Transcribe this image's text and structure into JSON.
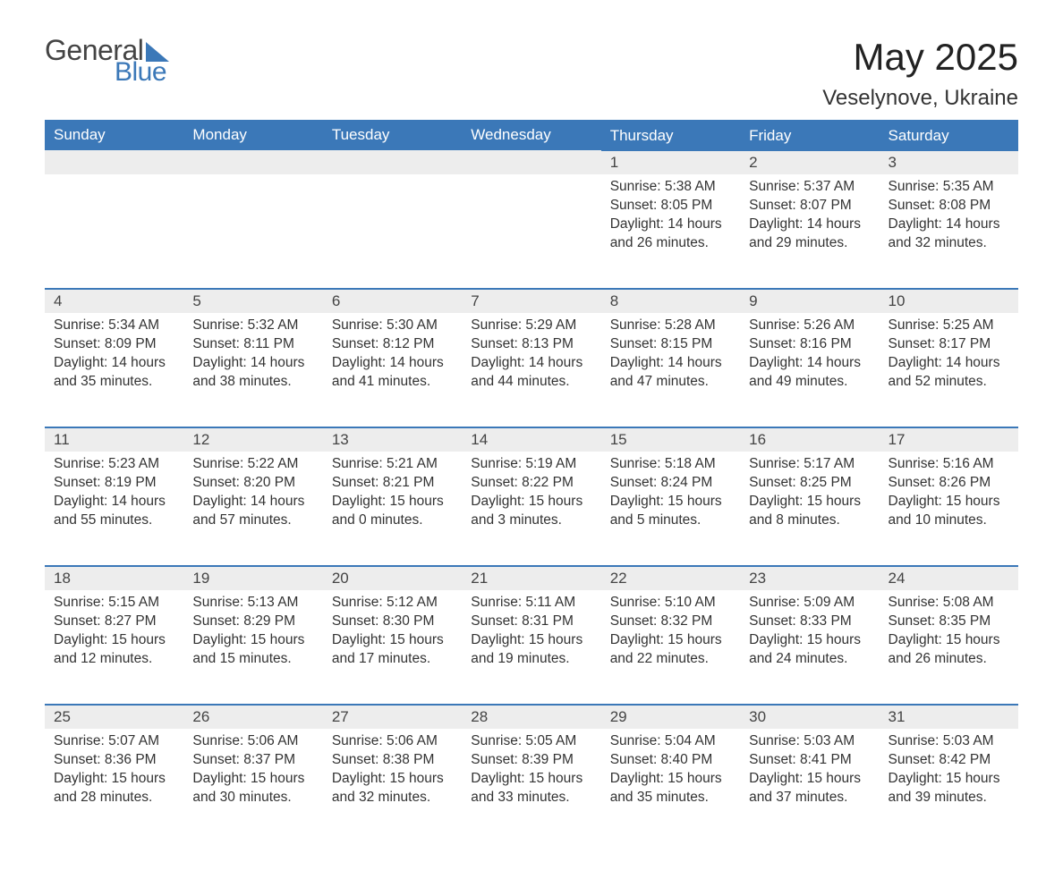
{
  "logo": {
    "text1": "General",
    "text2": "Blue"
  },
  "title": "May 2025",
  "location": "Veselynove, Ukraine",
  "weekdays": [
    "Sunday",
    "Monday",
    "Tuesday",
    "Wednesday",
    "Thursday",
    "Friday",
    "Saturday"
  ],
  "colors": {
    "header_bg": "#3b78b8",
    "header_fg": "#ffffff",
    "daynum_bg": "#ededed",
    "border": "#3b78b8",
    "text": "#333333"
  },
  "weeks": [
    [
      null,
      null,
      null,
      null,
      {
        "n": "1",
        "sunrise": "5:38 AM",
        "sunset": "8:05 PM",
        "dl": "14 hours and 26 minutes."
      },
      {
        "n": "2",
        "sunrise": "5:37 AM",
        "sunset": "8:07 PM",
        "dl": "14 hours and 29 minutes."
      },
      {
        "n": "3",
        "sunrise": "5:35 AM",
        "sunset": "8:08 PM",
        "dl": "14 hours and 32 minutes."
      }
    ],
    [
      {
        "n": "4",
        "sunrise": "5:34 AM",
        "sunset": "8:09 PM",
        "dl": "14 hours and 35 minutes."
      },
      {
        "n": "5",
        "sunrise": "5:32 AM",
        "sunset": "8:11 PM",
        "dl": "14 hours and 38 minutes."
      },
      {
        "n": "6",
        "sunrise": "5:30 AM",
        "sunset": "8:12 PM",
        "dl": "14 hours and 41 minutes."
      },
      {
        "n": "7",
        "sunrise": "5:29 AM",
        "sunset": "8:13 PM",
        "dl": "14 hours and 44 minutes."
      },
      {
        "n": "8",
        "sunrise": "5:28 AM",
        "sunset": "8:15 PM",
        "dl": "14 hours and 47 minutes."
      },
      {
        "n": "9",
        "sunrise": "5:26 AM",
        "sunset": "8:16 PM",
        "dl": "14 hours and 49 minutes."
      },
      {
        "n": "10",
        "sunrise": "5:25 AM",
        "sunset": "8:17 PM",
        "dl": "14 hours and 52 minutes."
      }
    ],
    [
      {
        "n": "11",
        "sunrise": "5:23 AM",
        "sunset": "8:19 PM",
        "dl": "14 hours and 55 minutes."
      },
      {
        "n": "12",
        "sunrise": "5:22 AM",
        "sunset": "8:20 PM",
        "dl": "14 hours and 57 minutes."
      },
      {
        "n": "13",
        "sunrise": "5:21 AM",
        "sunset": "8:21 PM",
        "dl": "15 hours and 0 minutes."
      },
      {
        "n": "14",
        "sunrise": "5:19 AM",
        "sunset": "8:22 PM",
        "dl": "15 hours and 3 minutes."
      },
      {
        "n": "15",
        "sunrise": "5:18 AM",
        "sunset": "8:24 PM",
        "dl": "15 hours and 5 minutes."
      },
      {
        "n": "16",
        "sunrise": "5:17 AM",
        "sunset": "8:25 PM",
        "dl": "15 hours and 8 minutes."
      },
      {
        "n": "17",
        "sunrise": "5:16 AM",
        "sunset": "8:26 PM",
        "dl": "15 hours and 10 minutes."
      }
    ],
    [
      {
        "n": "18",
        "sunrise": "5:15 AM",
        "sunset": "8:27 PM",
        "dl": "15 hours and 12 minutes."
      },
      {
        "n": "19",
        "sunrise": "5:13 AM",
        "sunset": "8:29 PM",
        "dl": "15 hours and 15 minutes."
      },
      {
        "n": "20",
        "sunrise": "5:12 AM",
        "sunset": "8:30 PM",
        "dl": "15 hours and 17 minutes."
      },
      {
        "n": "21",
        "sunrise": "5:11 AM",
        "sunset": "8:31 PM",
        "dl": "15 hours and 19 minutes."
      },
      {
        "n": "22",
        "sunrise": "5:10 AM",
        "sunset": "8:32 PM",
        "dl": "15 hours and 22 minutes."
      },
      {
        "n": "23",
        "sunrise": "5:09 AM",
        "sunset": "8:33 PM",
        "dl": "15 hours and 24 minutes."
      },
      {
        "n": "24",
        "sunrise": "5:08 AM",
        "sunset": "8:35 PM",
        "dl": "15 hours and 26 minutes."
      }
    ],
    [
      {
        "n": "25",
        "sunrise": "5:07 AM",
        "sunset": "8:36 PM",
        "dl": "15 hours and 28 minutes."
      },
      {
        "n": "26",
        "sunrise": "5:06 AM",
        "sunset": "8:37 PM",
        "dl": "15 hours and 30 minutes."
      },
      {
        "n": "27",
        "sunrise": "5:06 AM",
        "sunset": "8:38 PM",
        "dl": "15 hours and 32 minutes."
      },
      {
        "n": "28",
        "sunrise": "5:05 AM",
        "sunset": "8:39 PM",
        "dl": "15 hours and 33 minutes."
      },
      {
        "n": "29",
        "sunrise": "5:04 AM",
        "sunset": "8:40 PM",
        "dl": "15 hours and 35 minutes."
      },
      {
        "n": "30",
        "sunrise": "5:03 AM",
        "sunset": "8:41 PM",
        "dl": "15 hours and 37 minutes."
      },
      {
        "n": "31",
        "sunrise": "5:03 AM",
        "sunset": "8:42 PM",
        "dl": "15 hours and 39 minutes."
      }
    ]
  ],
  "labels": {
    "sunrise": "Sunrise: ",
    "sunset": "Sunset: ",
    "daylight": "Daylight: "
  }
}
